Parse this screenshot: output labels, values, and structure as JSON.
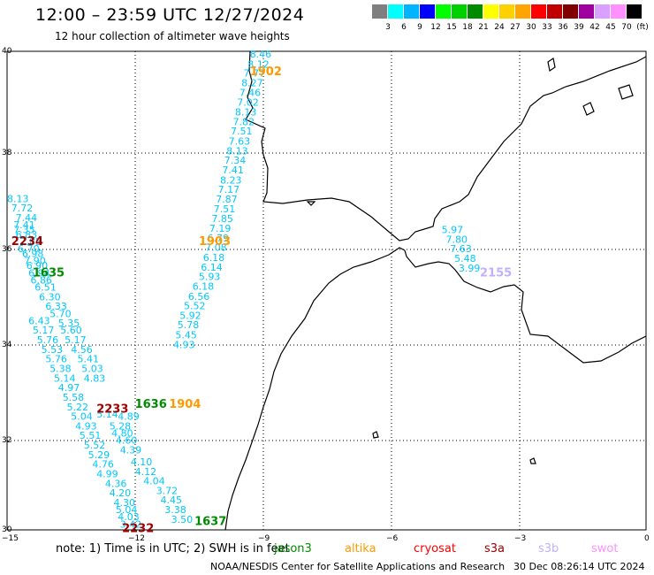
{
  "title": "12:00 – 23:59 UTC 12/27/2024",
  "subtitle": "12 hour collection of altimeter wave heights",
  "colorbar": {
    "colors": [
      "#7f7f7f",
      "#00ffff",
      "#00b4ff",
      "#0000ff",
      "#00ff00",
      "#00d000",
      "#008a00",
      "#ffff00",
      "#ffd000",
      "#ffa500",
      "#ff0000",
      "#c00000",
      "#800000",
      "#a000a0",
      "#d8a0ff",
      "#ff90ff",
      "#000000"
    ],
    "labels": [
      "3",
      "6",
      "9",
      "12",
      "15",
      "18",
      "21",
      "24",
      "27",
      "30",
      "33",
      "36",
      "39",
      "42",
      "45",
      "70",
      "(ft)"
    ]
  },
  "axes": {
    "lon_ticks": [
      "−15",
      "−12",
      "−9",
      "−6",
      "−3",
      "0"
    ],
    "lat_ticks": [
      "40",
      "38",
      "36",
      "34",
      "32",
      "30"
    ]
  },
  "colors": {
    "jason3": "#008a00",
    "altika": "#ff9900",
    "cryosat": "#ff0000",
    "s3a": "#a00000",
    "s3b": "#c0b0ff",
    "swot": "#ff90ff",
    "wave_values": "#00c8ff"
  },
  "passes": [
    {
      "label": "1902",
      "sat": "altika",
      "lon": -9.3,
      "lat": 39.5
    },
    {
      "label": "1903",
      "sat": "altika",
      "lon": -10.5,
      "lat": 35.95
    },
    {
      "label": "1904",
      "sat": "altika",
      "lon": -11.2,
      "lat": 32.55
    },
    {
      "label": "1635",
      "sat": "jason3",
      "lon": -14.4,
      "lat": 35.3
    },
    {
      "label": "1636",
      "sat": "jason3",
      "lon": -12.0,
      "lat": 32.55
    },
    {
      "label": "1637",
      "sat": "jason3",
      "lon": -10.6,
      "lat": 30.1
    },
    {
      "label": "2234",
      "sat": "s3a",
      "lon": -14.9,
      "lat": 35.95
    },
    {
      "label": "2233",
      "sat": "s3a",
      "lon": -12.9,
      "lat": 32.45
    },
    {
      "label": "2232",
      "sat": "s3a",
      "lon": -12.3,
      "lat": 29.95
    },
    {
      "label": "2155",
      "sat": "s3b",
      "lon": -3.9,
      "lat": 35.3
    }
  ],
  "tracks": [
    {
      "name": "altika-1902-1904",
      "points": [
        [
          "8.46",
          -9.3,
          39.87
        ],
        [
          "8.12",
          -9.35,
          39.66
        ],
        [
          "7.77",
          -9.45,
          39.47
        ],
        [
          "8.27",
          -9.5,
          39.27
        ],
        [
          "7.46",
          -9.55,
          39.07
        ],
        [
          "7.02",
          -9.6,
          38.86
        ],
        [
          "8.13",
          -9.65,
          38.66
        ],
        [
          "7.82",
          -9.7,
          38.46
        ],
        [
          "7.51",
          -9.75,
          38.26
        ],
        [
          "7.63",
          -9.8,
          38.05
        ],
        [
          "8.13",
          -9.85,
          37.85
        ],
        [
          "7.34",
          -9.9,
          37.65
        ],
        [
          "7.41",
          -9.95,
          37.45
        ],
        [
          "8.23",
          -10.0,
          37.24
        ],
        [
          "7.17",
          -10.05,
          37.04
        ],
        [
          "7.87",
          -10.1,
          36.84
        ],
        [
          "7.51",
          -10.15,
          36.64
        ],
        [
          "7.85",
          -10.2,
          36.43
        ],
        [
          "7.19",
          -10.25,
          36.23
        ],
        [
          "6.79",
          -10.3,
          36.03
        ],
        [
          "7.08",
          -10.35,
          35.83
        ],
        [
          "6.18",
          -10.4,
          35.62
        ],
        [
          "6.14",
          -10.45,
          35.42
        ],
        [
          "5.93",
          -10.5,
          35.22
        ],
        [
          "6.18",
          -10.65,
          35.02
        ],
        [
          "6.56",
          -10.75,
          34.81
        ],
        [
          "5.52",
          -10.85,
          34.61
        ],
        [
          "5.92",
          -10.95,
          34.41
        ],
        [
          "5.78",
          -11.0,
          34.21
        ],
        [
          "5.45",
          -11.05,
          34.0
        ],
        [
          "4.93",
          -11.1,
          33.8
        ]
      ]
    },
    {
      "name": "jason3-1635-1637",
      "points": [
        [
          "8.13",
          -15.0,
          36.85
        ],
        [
          "7.72",
          -14.9,
          36.65
        ],
        [
          "7.44",
          -14.8,
          36.45
        ],
        [
          "7.41",
          -14.85,
          36.3
        ],
        [
          "7.35",
          -14.85,
          36.2
        ],
        [
          "6.83",
          -14.8,
          36.1
        ],
        [
          "7.85",
          -14.7,
          35.95
        ],
        [
          "6.70",
          -14.75,
          35.8
        ],
        [
          "6.98",
          -14.65,
          35.7
        ],
        [
          "7.90",
          -14.6,
          35.55
        ],
        [
          "6.90",
          -14.55,
          35.45
        ],
        [
          "6.94",
          -14.5,
          35.3
        ],
        [
          "6.86",
          -14.45,
          35.15
        ],
        [
          "6.51",
          -14.35,
          35.0
        ],
        [
          "6.30",
          -14.25,
          34.8
        ],
        [
          "6.33",
          -14.1,
          34.6
        ],
        [
          "5.70",
          -14.0,
          34.45
        ],
        [
          "5.35",
          -13.8,
          34.25
        ],
        [
          "5.60",
          -13.75,
          34.1
        ],
        [
          "5.17",
          -13.65,
          33.9
        ],
        [
          "4.56",
          -13.5,
          33.7
        ],
        [
          "5.41",
          -13.35,
          33.5
        ],
        [
          "5.03",
          -13.25,
          33.3
        ],
        [
          "4.83",
          -13.2,
          33.1
        ],
        [
          "5.14",
          -12.9,
          32.35
        ],
        [
          "4.89",
          -12.4,
          32.3
        ],
        [
          "5.28",
          -12.6,
          32.1
        ],
        [
          "4.80",
          -12.55,
          31.95
        ],
        [
          "4.60",
          -12.45,
          31.8
        ],
        [
          "4.39",
          -12.35,
          31.6
        ],
        [
          "4.10",
          -12.1,
          31.35
        ],
        [
          "4.12",
          -12.0,
          31.15
        ],
        [
          "4.04",
          -11.8,
          30.95
        ],
        [
          "3.72",
          -11.5,
          30.75
        ],
        [
          "4.45",
          -11.4,
          30.55
        ],
        [
          "3.38",
          -11.3,
          30.35
        ],
        [
          "3.50",
          -11.15,
          30.15
        ]
      ]
    },
    {
      "name": "s3a-2234-2232",
      "points": [
        [
          "6.43",
          -14.5,
          34.3
        ],
        [
          "5.17",
          -14.4,
          34.1
        ],
        [
          "5.76",
          -14.3,
          33.9
        ],
        [
          "5.53",
          -14.2,
          33.7
        ],
        [
          "5.76",
          -14.1,
          33.5
        ],
        [
          "5.38",
          -14.0,
          33.3
        ],
        [
          "5.14",
          -13.9,
          33.1
        ],
        [
          "4.97",
          -13.8,
          32.9
        ],
        [
          "5.58",
          -13.7,
          32.7
        ],
        [
          "5.22",
          -13.6,
          32.5
        ],
        [
          "5.04",
          -13.5,
          32.3
        ],
        [
          "4.93",
          -13.4,
          32.1
        ],
        [
          "5.51",
          -13.3,
          31.9
        ],
        [
          "5.52",
          -13.2,
          31.7
        ],
        [
          "5.29",
          -13.1,
          31.5
        ],
        [
          "4.76",
          -13.0,
          31.3
        ],
        [
          "4.99",
          -12.9,
          31.1
        ],
        [
          "4.36",
          -12.7,
          30.9
        ],
        [
          "4.20",
          -12.6,
          30.7
        ],
        [
          "4.30",
          -12.5,
          30.5
        ],
        [
          "5.04",
          -12.45,
          30.35
        ],
        [
          "4.03",
          -12.4,
          30.2
        ],
        [
          "3.42",
          -12.35,
          30.05
        ]
      ]
    },
    {
      "name": "s3b-2155",
      "points": [
        [
          "5.97",
          -4.8,
          36.2
        ],
        [
          "7.80",
          -4.7,
          36.0
        ],
        [
          "7.63",
          -4.6,
          35.8
        ],
        [
          "5.48",
          -4.5,
          35.6
        ],
        [
          "3.99",
          -4.4,
          35.4
        ]
      ]
    }
  ],
  "footer": {
    "note": "note:  1) Time is in UTC; 2) SWH is in feet",
    "satellites": [
      {
        "key": "jason3",
        "label": "jason3"
      },
      {
        "key": "altika",
        "label": "altika"
      },
      {
        "key": "cryosat",
        "label": "cryosat"
      },
      {
        "key": "s3a",
        "label": "s3a"
      },
      {
        "key": "s3b",
        "label": "s3b"
      },
      {
        "key": "swot",
        "label": "swot"
      }
    ],
    "credit": "NOAA/NESDIS Center for Satellite Applications and Research",
    "timestamp": "30 Dec 08:26:14 UTC 2024"
  }
}
